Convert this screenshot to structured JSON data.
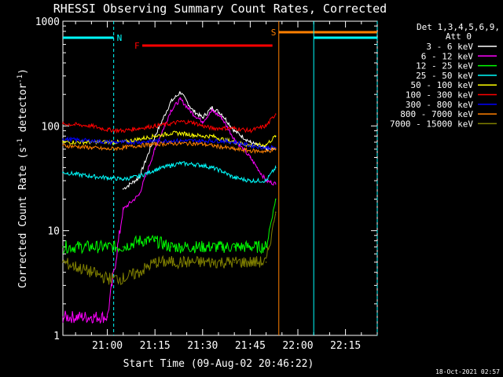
{
  "chart_data": {
    "type": "line",
    "title": "RHESSI Observing Summary Count Rates, Corrected",
    "xlabel": "Start Time (09-Aug-02 20:46:22)",
    "ylabel_main": "Corrected Count Rate (s",
    "ylabel_sup1": "-1",
    "ylabel_mid": " detector",
    "ylabel_sup2": "-1",
    "ylabel_end": ")",
    "yscale": "log",
    "ylim": [
      1,
      1000
    ],
    "xlim": [
      "20:46",
      "22:25"
    ],
    "x_ticks": [
      "21:00",
      "21:15",
      "21:30",
      "21:45",
      "22:00",
      "22:15"
    ],
    "y_ticks": [
      "1",
      "10",
      "100",
      "1000"
    ],
    "legend": {
      "placement": "right",
      "header1": "Det 1,3,4,5,6,9,",
      "header2": "Att 0"
    },
    "x": [
      "20:46",
      "20:55",
      "21:00",
      "21:05",
      "21:10",
      "21:15",
      "21:20",
      "21:23",
      "21:27",
      "21:30",
      "21:33",
      "21:36",
      "21:40",
      "21:45",
      "21:50",
      "21:53"
    ],
    "series": [
      {
        "name": "3 - 6 keV",
        "color": "#ffffff",
        "values": [
          null,
          null,
          null,
          25,
          32,
          80,
          170,
          210,
          140,
          120,
          150,
          130,
          90,
          70,
          60,
          60
        ]
      },
      {
        "name": "6 - 12 keV",
        "color": "#ff00ff",
        "values": [
          1.5,
          1.5,
          1.5,
          16,
          22,
          60,
          140,
          180,
          130,
          110,
          140,
          120,
          75,
          50,
          30,
          28
        ]
      },
      {
        "name": "12 - 25 keV",
        "color": "#00ff00",
        "values": [
          7,
          7,
          7,
          7,
          8,
          8,
          7,
          7,
          7,
          7,
          7,
          7,
          7,
          7,
          7,
          20
        ]
      },
      {
        "name": "25 - 50 keV",
        "color": "#00ffff",
        "values": [
          36,
          33,
          32,
          31,
          33,
          38,
          42,
          44,
          43,
          42,
          40,
          37,
          32,
          30,
          30,
          40
        ]
      },
      {
        "name": "50 - 100 keV",
        "color": "#ffff00",
        "values": [
          70,
          70,
          70,
          70,
          75,
          80,
          85,
          85,
          82,
          80,
          80,
          75,
          70,
          65,
          66,
          80
        ]
      },
      {
        "name": "100 - 300 keV",
        "color": "#ff0000",
        "values": [
          105,
          100,
          92,
          90,
          95,
          100,
          105,
          110,
          108,
          100,
          95,
          95,
          95,
          90,
          100,
          130
        ]
      },
      {
        "name": "300 - 800 keV",
        "color": "#0000ff",
        "values": [
          75,
          72,
          70,
          70,
          70,
          72,
          72,
          72,
          72,
          72,
          72,
          72,
          70,
          65,
          62,
          62
        ]
      },
      {
        "name": "800 - 7000 keV",
        "color": "#ff8000",
        "values": [
          65,
          62,
          60,
          62,
          65,
          67,
          68,
          68,
          68,
          67,
          65,
          63,
          60,
          58,
          57,
          60
        ]
      },
      {
        "name": "7000 - 15000 keV",
        "color": "#808000",
        "values": [
          5,
          4,
          3.5,
          3.5,
          4,
          5,
          5,
          5,
          5,
          5,
          5,
          5,
          5,
          5,
          5,
          15
        ]
      }
    ],
    "flags": [
      {
        "label": "N",
        "color": "#00ffff",
        "start": "20:46",
        "end": "21:02"
      },
      {
        "label": "F",
        "color": "#ff0000",
        "start": "21:11",
        "end": "21:52"
      },
      {
        "label": "S",
        "color": "#ff8000",
        "start": "21:54",
        "end": "22:25"
      },
      {
        "label": "",
        "color": "#00ffff",
        "start": "22:05",
        "end": "22:25"
      }
    ],
    "timestamp": "18-Oct-2021 02:57"
  }
}
